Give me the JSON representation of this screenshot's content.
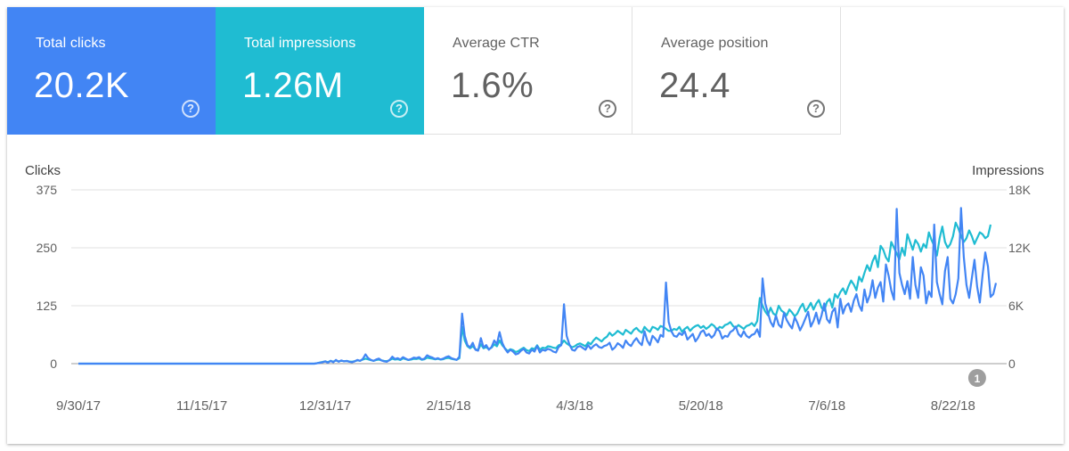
{
  "metrics": [
    {
      "label": "Total clicks",
      "value": "20.2K",
      "active": true,
      "color": "#4285f4"
    },
    {
      "label": "Total impressions",
      "value": "1.26M",
      "active": true,
      "color": "#1fbcd2"
    },
    {
      "label": "Average CTR",
      "value": "1.6%",
      "active": false
    },
    {
      "label": "Average position",
      "value": "24.4",
      "active": false
    }
  ],
  "help_icon": "question-mark-circle-icon",
  "chart_data": {
    "type": "line",
    "ylabel_left": "Clicks",
    "ylabel_right": "Impressions",
    "left_ticks": [
      "375",
      "250",
      "125",
      "0"
    ],
    "left_range": [
      0,
      375
    ],
    "right_ticks": [
      "18K",
      "12K",
      "6K",
      "0"
    ],
    "right_range": [
      0,
      18000
    ],
    "x_tick_labels": [
      "9/30/17",
      "11/15/17",
      "12/31/17",
      "2/15/18",
      "4/3/18",
      "5/20/18",
      "7/6/18",
      "8/22/18"
    ],
    "x_tick_index": [
      0,
      46,
      92,
      138,
      185,
      232,
      279,
      326
    ],
    "annotation": {
      "label": "1",
      "index": 335
    },
    "grid": true,
    "series": [
      {
        "name": "Clicks",
        "color": "#4285f4",
        "axis": "left",
        "values": [
          0,
          0,
          0,
          0,
          0,
          0,
          0,
          0,
          0,
          0,
          0,
          0,
          0,
          0,
          0,
          0,
          0,
          0,
          0,
          0,
          0,
          0,
          0,
          0,
          0,
          0,
          0,
          0,
          0,
          0,
          0,
          0,
          0,
          0,
          0,
          0,
          0,
          0,
          0,
          0,
          0,
          0,
          0,
          0,
          0,
          0,
          0,
          0,
          0,
          0,
          0,
          0,
          0,
          0,
          0,
          0,
          0,
          0,
          0,
          0,
          0,
          0,
          0,
          0,
          0,
          0,
          0,
          0,
          0,
          0,
          0,
          0,
          0,
          0,
          0,
          0,
          0,
          0,
          0,
          0,
          0,
          0,
          0,
          0,
          0,
          0,
          0,
          0,
          0,
          1,
          2,
          3,
          5,
          2,
          6,
          3,
          8,
          4,
          7,
          5,
          6,
          4,
          3,
          5,
          8,
          6,
          10,
          20,
          12,
          8,
          6,
          9,
          11,
          7,
          5,
          4,
          8,
          15,
          10,
          12,
          9,
          14,
          11,
          8,
          10,
          13,
          12,
          14,
          9,
          11,
          18,
          15,
          13,
          10,
          12,
          9,
          11,
          14,
          16,
          12,
          10,
          8,
          15,
          108,
          60,
          40,
          35,
          45,
          30,
          28,
          55,
          35,
          40,
          30,
          36,
          50,
          42,
          68,
          45,
          32,
          24,
          30,
          26,
          20,
          22,
          28,
          32,
          24,
          22,
          30,
          26,
          38,
          24,
          30,
          28,
          32,
          30,
          26,
          24,
          36,
          40,
          128,
          60,
          42,
          30,
          28,
          36,
          38,
          34,
          30,
          40,
          32,
          38,
          42,
          36,
          34,
          38,
          40,
          45,
          30,
          35,
          44,
          40,
          34,
          50,
          42,
          38,
          48,
          55,
          46,
          40,
          70,
          50,
          40,
          60,
          54,
          46,
          62,
          58,
          175,
          90,
          70,
          60,
          58,
          66,
          62,
          70,
          52,
          58,
          64,
          48,
          56,
          68,
          72,
          60,
          64,
          56,
          62,
          76,
          70,
          54,
          60,
          58,
          68,
          72,
          80,
          64,
          58,
          70,
          60,
          56,
          62,
          64,
          74,
          58,
          184,
          130,
          110,
          90,
          80,
          104,
          84,
          78,
          110,
          94,
          84,
          76,
          100,
          88,
          72,
          84,
          98,
          112,
          80,
          92,
          110,
          86,
          104,
          130,
          96,
          88,
          112,
          120,
          78,
          140,
          108,
          124,
          130,
          112,
          136,
          150,
          126,
          114,
          160,
          132,
          148,
          180,
          142,
          164,
          176,
          134,
          214,
          190,
          158,
          138,
          334,
          196,
          170,
          150,
          178,
          140,
          230,
          170,
          142,
          208,
          190,
          130,
          156,
          144,
          300,
          176,
          150,
          128,
          200,
          230,
          140,
          130,
          150,
          184,
          336,
          230,
          170,
          142,
          184,
          224,
          166,
          132,
          190,
          240,
          210,
          144,
          150,
          174
        ]
      },
      {
        "name": "Impressions",
        "color": "#1fbcd2",
        "axis": "right",
        "values": [
          0,
          0,
          0,
          0,
          0,
          0,
          0,
          0,
          0,
          0,
          0,
          0,
          0,
          0,
          0,
          0,
          0,
          0,
          0,
          0,
          0,
          0,
          0,
          0,
          0,
          0,
          0,
          0,
          0,
          0,
          0,
          0,
          0,
          0,
          0,
          0,
          0,
          0,
          0,
          0,
          0,
          0,
          0,
          0,
          0,
          0,
          0,
          0,
          0,
          0,
          0,
          0,
          0,
          0,
          0,
          0,
          0,
          0,
          0,
          0,
          0,
          0,
          0,
          0,
          0,
          0,
          0,
          0,
          0,
          0,
          0,
          0,
          0,
          0,
          0,
          0,
          0,
          0,
          0,
          0,
          0,
          0,
          0,
          0,
          0,
          0,
          0,
          0,
          0,
          60,
          120,
          180,
          240,
          150,
          300,
          200,
          320,
          240,
          300,
          260,
          280,
          220,
          200,
          260,
          340,
          300,
          420,
          520,
          440,
          360,
          300,
          380,
          420,
          340,
          280,
          260,
          360,
          520,
          420,
          460,
          380,
          540,
          460,
          380,
          420,
          500,
          480,
          540,
          400,
          460,
          620,
          560,
          520,
          440,
          500,
          420,
          460,
          560,
          600,
          500,
          440,
          400,
          560,
          3800,
          2400,
          1800,
          1600,
          1800,
          1500,
          1400,
          2000,
          1600,
          1700,
          1500,
          1650,
          2000,
          1800,
          2400,
          1900,
          1600,
          1300,
          1500,
          1400,
          1200,
          1300,
          1500,
          1650,
          1400,
          1300,
          1600,
          1500,
          1900,
          1450,
          1650,
          1600,
          1800,
          1750,
          1650,
          1600,
          1900,
          2000,
          2400,
          2100,
          1900,
          1700,
          1800,
          2000,
          2100,
          1950,
          1800,
          2200,
          2000,
          2400,
          2700,
          2500,
          2300,
          2600,
          2800,
          3200,
          2900,
          3100,
          3400,
          3200,
          3000,
          3500,
          3300,
          3100,
          3500,
          3700,
          3400,
          3200,
          3800,
          3500,
          3300,
          3800,
          3700,
          3500,
          3900,
          3800,
          3600,
          3400,
          3400,
          3600,
          3500,
          3800,
          3300,
          3600,
          3800,
          3400,
          3700,
          3900,
          4000,
          3700,
          3900,
          3600,
          3800,
          4100,
          3900,
          3500,
          3800,
          3700,
          4000,
          4100,
          4300,
          3900,
          3700,
          4000,
          3800,
          3600,
          3900,
          4000,
          4200,
          3900,
          4400,
          6800,
          6000,
          5400,
          5000,
          5800,
          5200,
          5000,
          6000,
          5500,
          5300,
          5000,
          5600,
          5300,
          4900,
          5200,
          5800,
          6200,
          5400,
          5800,
          6300,
          5600,
          6200,
          6600,
          5800,
          5500,
          6400,
          6700,
          5800,
          7200,
          6800,
          7400,
          7800,
          7200,
          8000,
          8600,
          8200,
          7600,
          9000,
          8500,
          9400,
          10200,
          9600,
          10600,
          11200,
          10000,
          12200,
          11800,
          11000,
          10600,
          12600,
          12000,
          11400,
          10800,
          12000,
          11200,
          13400,
          12600,
          11800,
          12800,
          12400,
          11600,
          12400,
          12000,
          13600,
          12800,
          12200,
          11200,
          13000,
          14200,
          12600,
          12000,
          12400,
          13200,
          14600,
          14000,
          13200,
          12600,
          13000,
          13800,
          13200,
          12400,
          13000,
          13600,
          13400,
          13000,
          13200,
          14400
        ]
      }
    ]
  }
}
